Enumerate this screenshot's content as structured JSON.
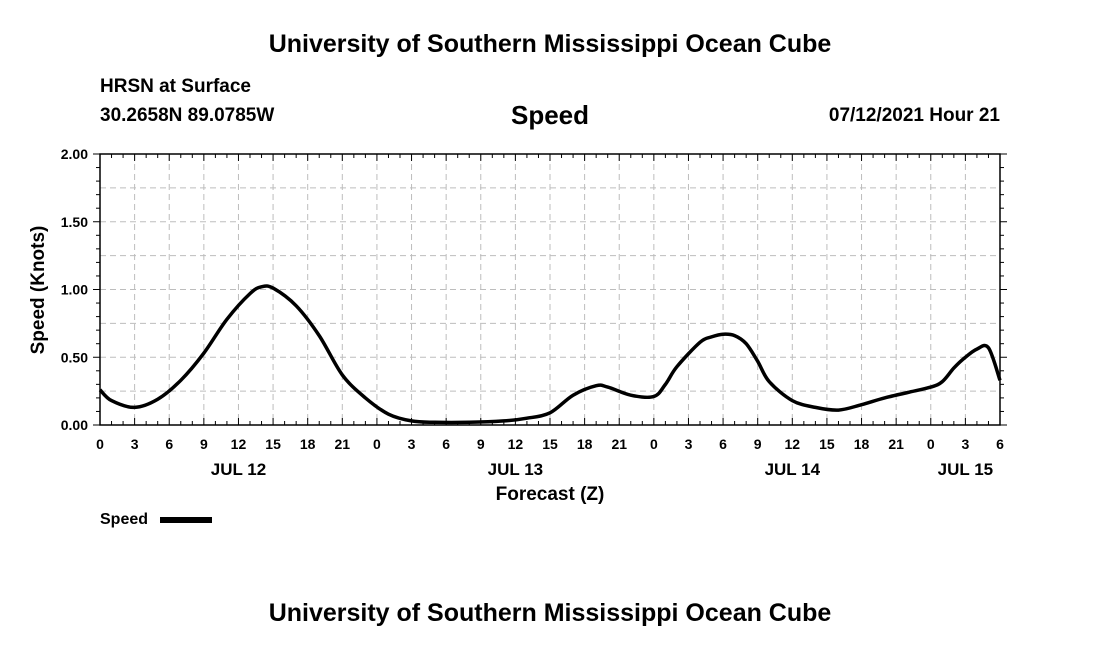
{
  "header": {
    "title": "University of Southern Mississippi Ocean Cube",
    "station": "HRSN at Surface",
    "coords": "30.2658N  89.0785W",
    "variable": "Speed",
    "valid": "07/12/2021 Hour 21"
  },
  "footer": {
    "title": "University of Southern Mississippi Ocean Cube"
  },
  "chart_data": {
    "type": "line",
    "title": "Speed",
    "xlabel": "Forecast (Z)",
    "ylabel": "Speed (Knots)",
    "ylim": [
      0,
      2
    ],
    "yticks": [
      "0.00",
      "0.50",
      "1.00",
      "1.50",
      "2.00"
    ],
    "ytick_values": [
      0,
      0.5,
      1,
      1.5,
      2
    ],
    "xlim_hours": [
      0,
      78
    ],
    "xtick_labels": [
      "0",
      "3",
      "6",
      "9",
      "12",
      "15",
      "18",
      "21",
      "0",
      "3",
      "6",
      "9",
      "12",
      "15",
      "18",
      "21",
      "0",
      "3",
      "6",
      "9",
      "12",
      "15",
      "18",
      "21",
      "0",
      "3",
      "6"
    ],
    "date_labels": [
      {
        "label": "JUL 12",
        "hour": 12
      },
      {
        "label": "JUL 13",
        "hour": 36
      },
      {
        "label": "JUL 14",
        "hour": 60
      },
      {
        "label": "JUL 15",
        "hour": 75
      }
    ],
    "grid": true,
    "legend": {
      "label": "Speed",
      "placement": "bottom-left"
    },
    "series": [
      {
        "name": "Speed",
        "x_hours": [
          0,
          1,
          3,
          5,
          7,
          9,
          11,
          13,
          14,
          15,
          17,
          19,
          21,
          23,
          25,
          27,
          29,
          32,
          35,
          37,
          39,
          41,
          43,
          44,
          46,
          48,
          49,
          50,
          52,
          53,
          54,
          55,
          56,
          57,
          58,
          60,
          62,
          64,
          66,
          68,
          70,
          72,
          73,
          74,
          75,
          76,
          77,
          78
        ],
        "values": [
          0.26,
          0.18,
          0.13,
          0.19,
          0.33,
          0.53,
          0.78,
          0.97,
          1.02,
          1.01,
          0.88,
          0.66,
          0.37,
          0.2,
          0.08,
          0.03,
          0.02,
          0.02,
          0.03,
          0.05,
          0.09,
          0.22,
          0.29,
          0.28,
          0.22,
          0.21,
          0.3,
          0.43,
          0.61,
          0.65,
          0.67,
          0.66,
          0.6,
          0.47,
          0.32,
          0.18,
          0.13,
          0.11,
          0.15,
          0.2,
          0.24,
          0.28,
          0.32,
          0.42,
          0.5,
          0.56,
          0.57,
          0.33
        ]
      }
    ]
  }
}
